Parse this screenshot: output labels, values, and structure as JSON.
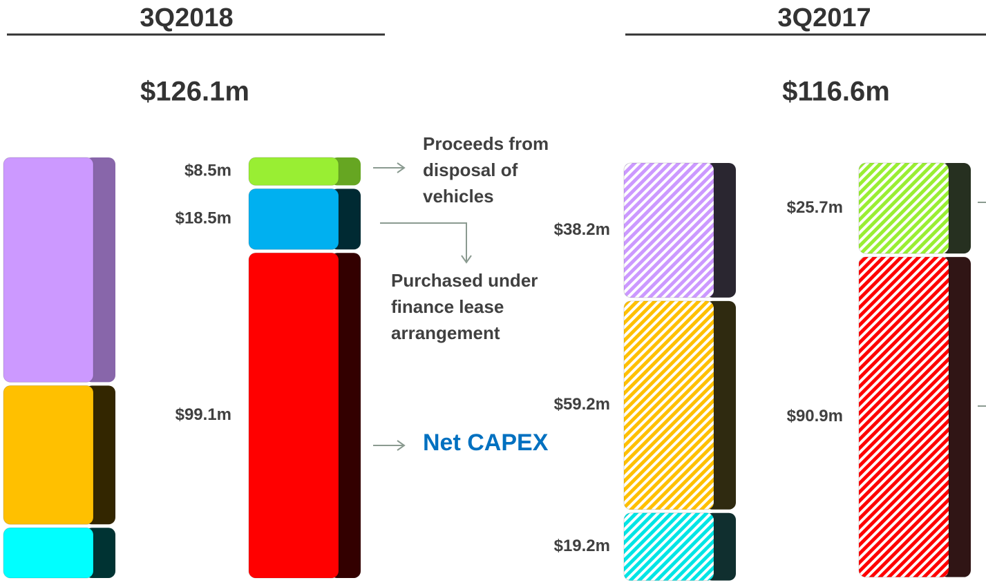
{
  "panels": [
    {
      "title": "3Q2018",
      "total": "$126.1m",
      "hatched": false,
      "bars": [
        {
          "segments": [
            {
              "value": 68.5,
              "color": "#cc99ff",
              "side_color": "#8866aa"
            },
            {
              "value": 42.3,
              "color": "#ffc000",
              "side_color": "#332600"
            },
            {
              "value": 15.3,
              "color": "#00ffff",
              "side_color": "#003333"
            }
          ]
        },
        {
          "segments": [
            {
              "value": 8.5,
              "value_label": "$8.5m",
              "color": "#99ee33",
              "side_color": "#66a622"
            },
            {
              "value": 18.5,
              "value_label": "$18.5m",
              "color": "#00b0f0",
              "side_color": "#002a33"
            },
            {
              "value": 99.1,
              "value_label": "$99.1m",
              "color": "#ff0000",
              "side_color": "#330000"
            }
          ]
        }
      ]
    },
    {
      "title": "3Q2017",
      "total": "$116.6m",
      "hatched": true,
      "bars": [
        {
          "segments": [
            {
              "value": 38.2,
              "value_label": "$38.2m",
              "color": "#cc99ff",
              "side_color": "#2a2630"
            },
            {
              "value": 59.2,
              "value_label": "$59.2m",
              "color": "#ffc000",
              "side_color": "#2f2a10"
            },
            {
              "value": 19.2,
              "value_label": "$19.2m",
              "color": "#00e5e5",
              "side_color": "#102f2f"
            }
          ]
        },
        {
          "segments": [
            {
              "value": 25.7,
              "value_label": "$25.7m",
              "color": "#99ee33",
              "side_color": "#263020"
            },
            {
              "value": 90.9,
              "value_label": "$90.9m",
              "color": "#ff0000",
              "side_color": "#301515"
            }
          ]
        }
      ]
    }
  ],
  "annotations": {
    "disposal": "Proceeds from disposal of vehicles",
    "finance_lease": "Purchased under finance lease arrangement",
    "net_capex": "Net CAPEX"
  }
}
